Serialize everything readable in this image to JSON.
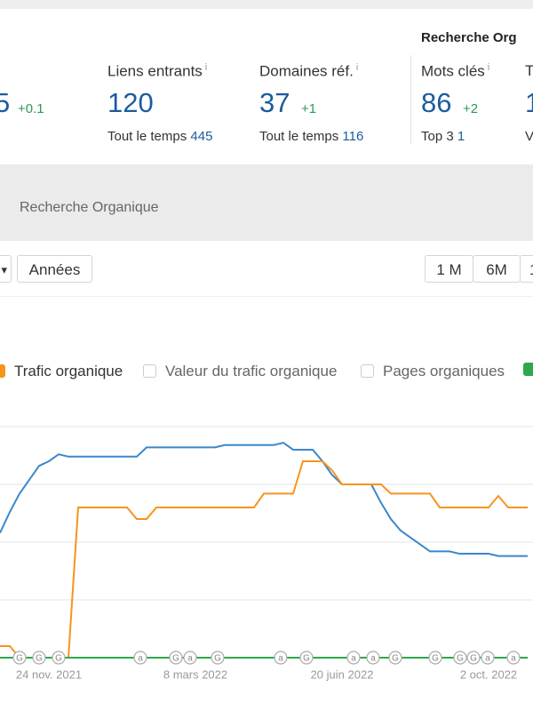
{
  "header": {
    "section_title": "Recherche Org",
    "info_icon": "i"
  },
  "stats": [
    {
      "value": 5,
      "delta": "+0.1"
    },
    {
      "label": "Liens entrants",
      "value": 120,
      "sub_label": "Tout le temps",
      "sub_value": 445
    },
    {
      "label": "Domaines réf.",
      "value": 37,
      "delta": "+1",
      "sub_label": "Tout le temps",
      "sub_value": 116
    },
    {
      "label": "Mots clés",
      "value": 86,
      "delta": "+2",
      "sub_label": "Top 3",
      "sub_value": 1
    },
    {
      "label": "T",
      "value": 1,
      "sub_label": "V"
    }
  ],
  "band_title": "Recherche Organique",
  "controls": {
    "left": "▾",
    "period": "Années",
    "ranges": [
      "1 M",
      "6M",
      "1"
    ]
  },
  "legend_unchecked": [
    "Valeur du trafic organique",
    "Pages organiques"
  ],
  "events": [
    "G",
    "G",
    "G",
    "a",
    "G",
    "a",
    "G",
    "a",
    "G",
    "a",
    "a",
    "G",
    "G",
    "G",
    "G",
    "a",
    "a"
  ],
  "chart": {
    "type": "line",
    "categories": [
      null,
      null,
      null,
      null,
      null,
      "24 nov. 2021",
      null,
      null,
      null,
      null,
      null,
      null,
      null,
      null,
      null,
      null,
      null,
      null,
      null,
      null,
      "8 mars 2022",
      null,
      null,
      null,
      null,
      null,
      null,
      null,
      null,
      null,
      null,
      null,
      null,
      null,
      null,
      "20 juin 2022",
      null,
      null,
      null,
      null,
      null,
      null,
      null,
      null,
      null,
      null,
      null,
      null,
      null,
      null,
      "2 oct. 2022",
      null,
      null,
      null,
      null
    ],
    "ylim": [
      0,
      100
    ],
    "series": [
      {
        "color": "#3b87c8",
        "values": [
          54,
          63,
          71,
          77,
          83,
          85,
          88,
          87,
          87,
          87,
          87,
          87,
          87,
          87,
          87,
          91,
          91,
          91,
          91,
          91,
          91,
          91,
          91,
          92,
          92,
          92,
          92,
          92,
          92,
          93,
          90,
          90,
          90,
          85,
          79,
          75,
          75,
          75,
          75,
          67,
          60,
          55,
          52,
          49,
          46,
          46,
          46,
          45,
          45,
          45,
          45,
          44,
          44,
          44,
          44
        ]
      },
      {
        "name": "Trafic organique",
        "color": "#f7941d",
        "values": [
          5,
          5,
          0,
          0,
          0,
          0,
          0,
          0,
          65,
          65,
          65,
          65,
          65,
          65,
          60,
          60,
          65,
          65,
          65,
          65,
          65,
          65,
          65,
          65,
          65,
          65,
          65,
          71,
          71,
          71,
          71,
          85,
          85,
          85,
          81,
          75,
          75,
          75,
          75,
          75,
          71,
          71,
          71,
          71,
          71,
          65,
          65,
          65,
          65,
          65,
          65,
          70,
          65,
          65,
          65
        ]
      },
      {
        "color": "#2ea84a",
        "values": [
          0,
          0,
          0,
          0,
          0,
          0,
          0,
          0,
          0,
          0,
          0,
          0,
          0,
          0,
          0,
          0,
          0,
          0,
          0,
          0,
          0,
          0,
          0,
          0,
          0,
          0,
          0,
          0,
          0,
          0,
          0,
          0,
          0,
          0,
          0,
          0,
          0,
          0,
          0,
          0,
          0,
          0,
          0,
          0,
          0,
          0,
          0,
          0,
          0,
          0,
          0,
          0,
          0,
          0,
          0
        ]
      }
    ]
  }
}
